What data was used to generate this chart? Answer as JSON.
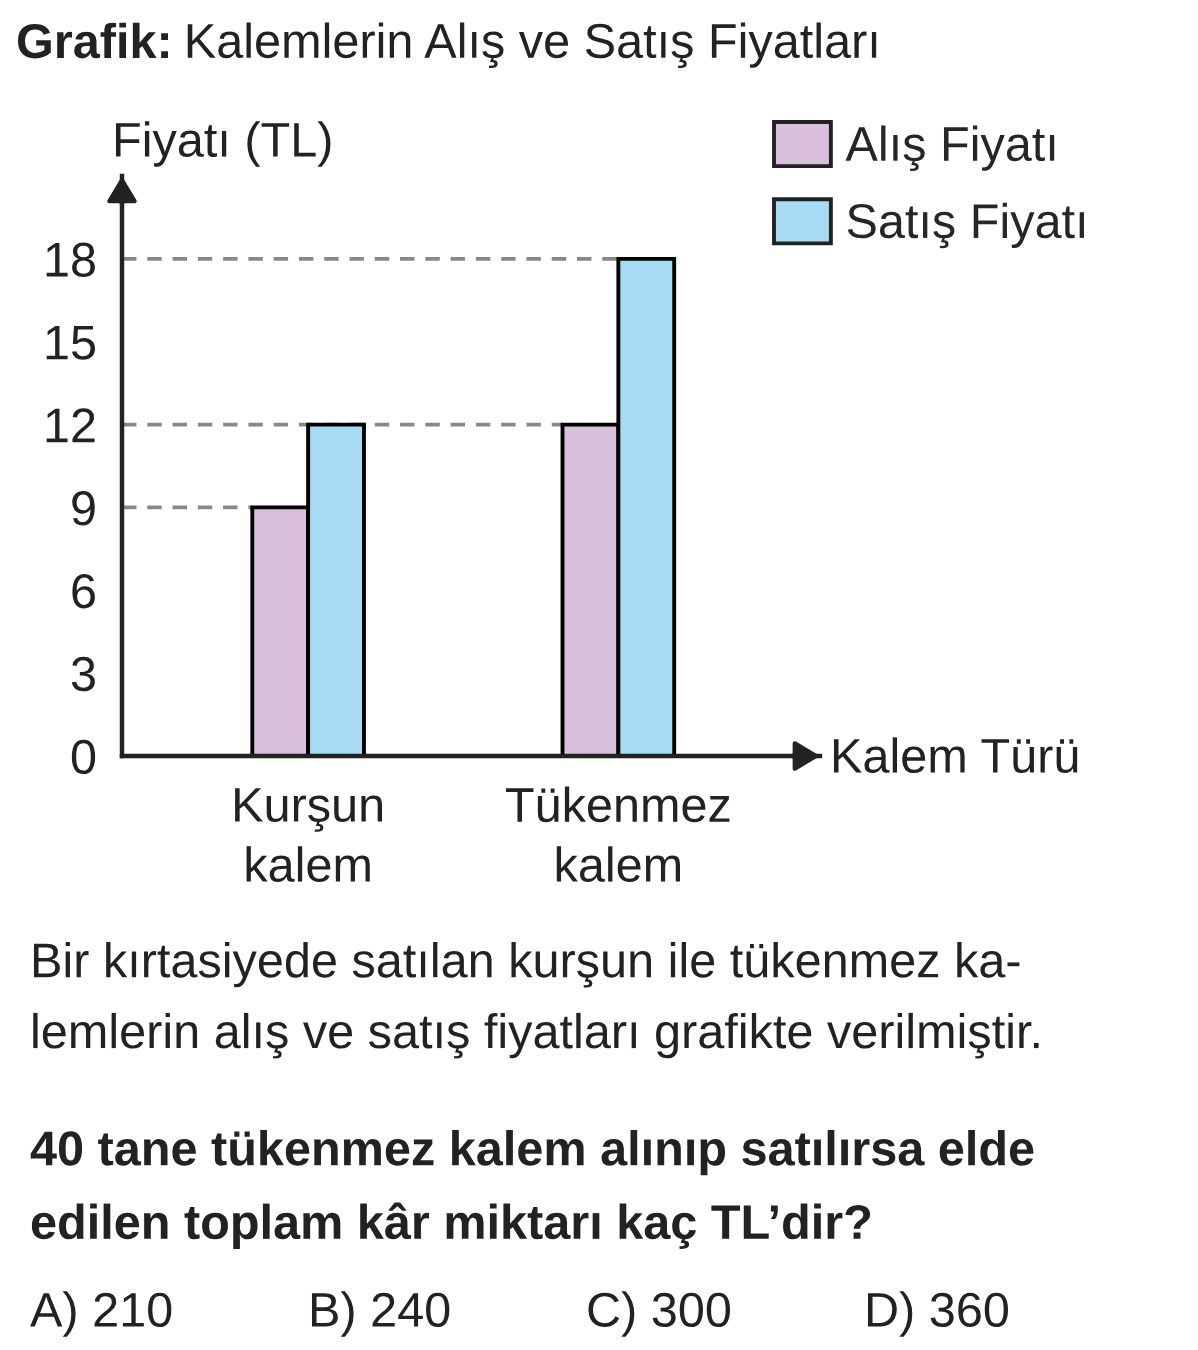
{
  "chart_data": {
    "type": "bar",
    "title": "Kalemlerin Alış ve Satış Fiyatları",
    "xlabel": "Kalem Türü",
    "ylabel": "Fiyatı (TL)",
    "categories": [
      "Kurşun\nkalem",
      "Tükenmez\nkalem"
    ],
    "series": [
      {
        "name": "Alış Fiyatı",
        "color": "#d9c0dd",
        "values": [
          9,
          12
        ]
      },
      {
        "name": "Satış Fiyatı",
        "color": "#a6dbf3",
        "values": [
          12,
          18
        ]
      }
    ],
    "ylim": [
      0,
      21
    ],
    "yticks": [
      0,
      3,
      6,
      9,
      12,
      15,
      18
    ],
    "ref_lines": [
      {
        "axis": "y",
        "value": 9,
        "color": "#888888",
        "line_style": "dashed"
      },
      {
        "axis": "y",
        "value": 12,
        "color": "#888888",
        "line_style": "dashed"
      },
      {
        "axis": "y",
        "value": 18,
        "color": "#888888",
        "line_style": "dashed"
      }
    ],
    "legend": "top right",
    "annotations": [
      "Grafik:",
      "Bir kırtasiyede satılan kurşun ile tükenmez ka-\nlemlerin alış ve satış fiyatları grafikte verilmiştir.",
      "40 tane tükenmez kalem alınıp satılırsa elde\nedilen toplam kâr miktarı kaç TL’dir?",
      "A) 210",
      "B) 240",
      "C) 300",
      "D) 360"
    ]
  }
}
